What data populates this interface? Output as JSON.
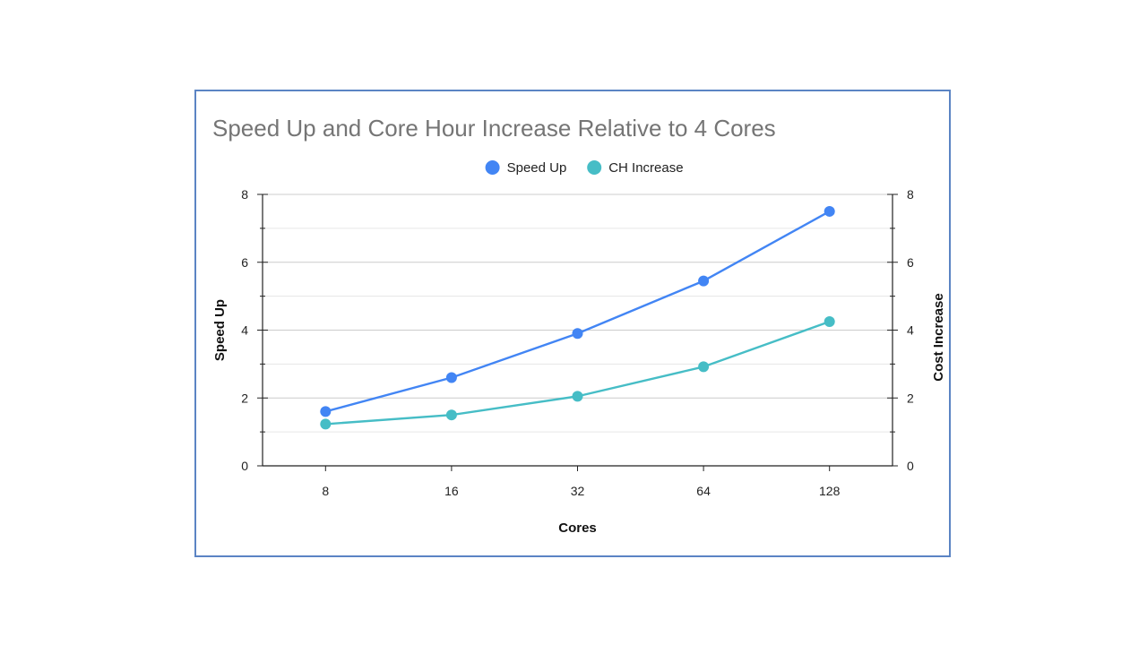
{
  "chart_data": {
    "type": "line",
    "title": "Speed Up and Core Hour Increase Relative to 4 Cores",
    "categories": [
      "8",
      "16",
      "32",
      "64",
      "128"
    ],
    "xlabel": "Cores",
    "ylabel": "Speed Up",
    "y2label": "Cost Increase",
    "ylim": [
      0,
      8
    ],
    "y2lim": [
      0,
      8
    ],
    "yticks": [
      0,
      2,
      4,
      6,
      8
    ],
    "legend_position": "top-center",
    "grid": true,
    "series": [
      {
        "name": "Speed Up",
        "axis": "left",
        "color": "#4285f4",
        "values": [
          1.6,
          2.6,
          3.9,
          5.45,
          7.5
        ]
      },
      {
        "name": "CH Increase",
        "axis": "right",
        "color": "#46bdc6",
        "values": [
          1.23,
          1.5,
          2.05,
          2.92,
          4.25
        ]
      }
    ]
  }
}
